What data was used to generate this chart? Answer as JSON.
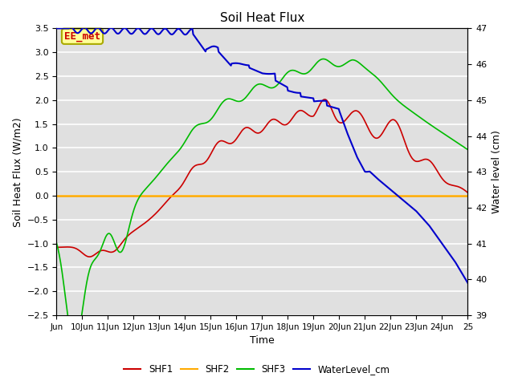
{
  "title": "Soil Heat Flux",
  "ylabel_left": "Soil Heat Flux (W/m2)",
  "ylabel_right": "Water level (cm)",
  "xlabel": "Time",
  "ylim_left": [
    -2.5,
    3.5
  ],
  "ylim_right": [
    39.0,
    47.0
  ],
  "x_start": 9,
  "x_end": 25,
  "x_ticks": [
    9,
    10,
    11,
    12,
    13,
    14,
    15,
    16,
    17,
    18,
    19,
    20,
    21,
    22,
    23,
    24,
    25
  ],
  "x_tick_labels": [
    "Jun",
    "10Jun",
    "11Jun",
    "12Jun",
    "13Jun",
    "14Jun",
    "15Jun",
    "16Jun",
    "17Jun",
    "18Jun",
    "19Jun",
    "20Jun",
    "21Jun",
    "22Jun",
    "23Jun",
    "24Jun",
    "25"
  ],
  "color_shf1": "#cc0000",
  "color_shf2": "#ffaa00",
  "color_shf3": "#00bb00",
  "color_water": "#0000cc",
  "bg_color": "#e0e0e0",
  "grid_color": "#ffffff",
  "annotation_text": "EE_met",
  "annotation_color": "#cc0000",
  "annotation_bg": "#ffff99",
  "annotation_border": "#aaaa00"
}
